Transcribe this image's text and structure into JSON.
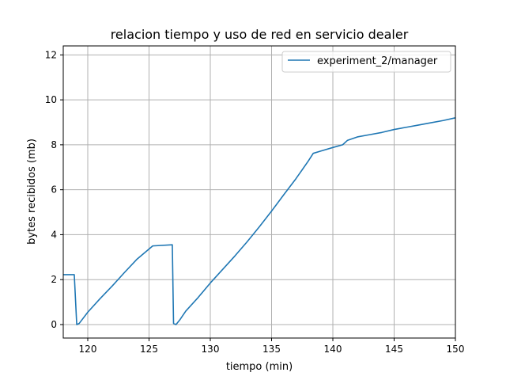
{
  "chart_data": {
    "type": "line",
    "title": "relacion tiempo y uso de red en servicio dealer",
    "xlabel": "tiempo (min)",
    "ylabel": "bytes recibidos (mb)",
    "xlim": [
      118,
      150
    ],
    "ylim": [
      -0.6,
      12.4
    ],
    "xticks": [
      120,
      125,
      130,
      135,
      140,
      145,
      150
    ],
    "yticks": [
      0,
      2,
      4,
      6,
      8,
      10,
      12
    ],
    "grid": true,
    "legend": {
      "placement": "top-right"
    },
    "colors": {
      "series": "#1f77b4",
      "grid": "#b0b0b0"
    },
    "series": [
      {
        "name": "experiment_2/manager",
        "x": [
          118,
          118.9,
          119.1,
          119.3,
          120,
          121,
          122,
          123,
          124,
          125.3,
          126.9,
          127.0,
          127.2,
          127.5,
          128,
          129,
          130,
          131,
          132,
          133,
          134,
          135,
          136,
          137,
          138,
          138.4,
          139,
          140,
          140.8,
          141.2,
          142,
          143,
          144,
          145,
          146,
          147,
          148,
          149,
          150
        ],
        "y": [
          2.22,
          2.22,
          0.0,
          0.05,
          0.55,
          1.15,
          1.72,
          2.32,
          2.9,
          3.5,
          3.55,
          0.05,
          0.0,
          0.2,
          0.6,
          1.2,
          1.85,
          2.45,
          3.05,
          3.68,
          4.35,
          5.05,
          5.78,
          6.5,
          7.28,
          7.62,
          7.72,
          7.88,
          8.0,
          8.2,
          8.35,
          8.45,
          8.55,
          8.68,
          8.78,
          8.88,
          8.98,
          9.08,
          9.2
        ]
      }
    ]
  }
}
